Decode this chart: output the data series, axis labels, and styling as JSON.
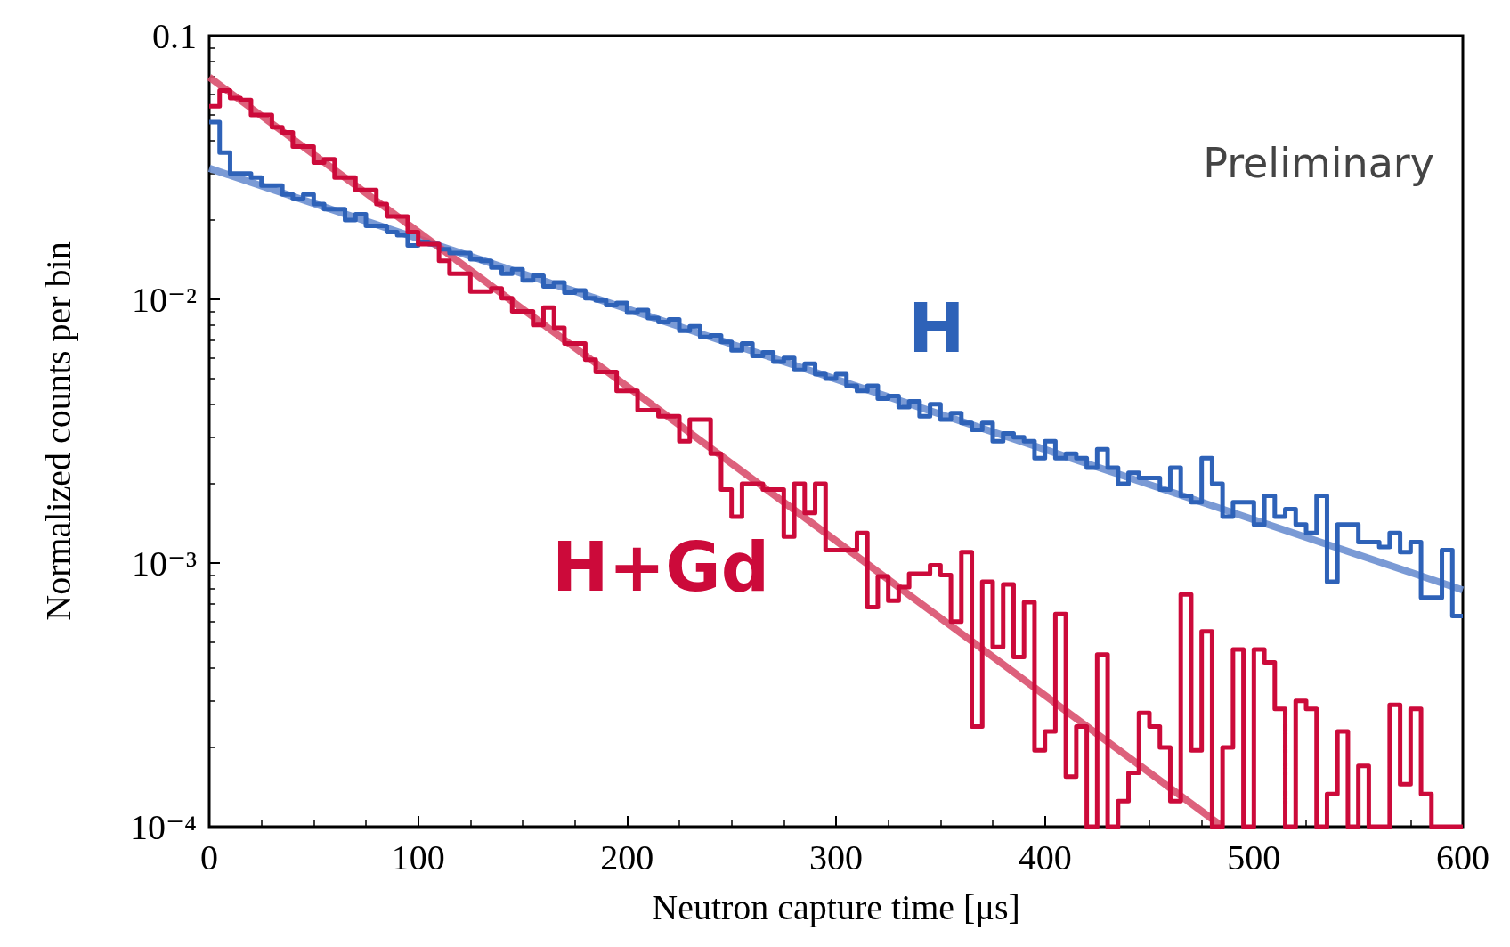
{
  "chart_data": {
    "type": "histogram",
    "xlabel": "Neutron capture time [μs]",
    "ylabel": "Normalized counts per bin",
    "log": "y",
    "xlim": [
      0,
      600
    ],
    "xticks": [
      0,
      100,
      200,
      300,
      400,
      500,
      600
    ],
    "ylim": [
      0.0001,
      0.1
    ],
    "yticks": [
      {
        "value": 0.1,
        "label": "0.1"
      },
      {
        "value": 0.01,
        "label": "10⁻²"
      },
      {
        "value": 0.001,
        "label": "10⁻³"
      },
      {
        "value": 0.0001,
        "label": "10⁻⁴"
      }
    ],
    "grid": false,
    "bins": [
      0,
      5,
      10,
      15,
      20,
      25,
      30,
      35,
      40,
      45,
      50,
      55,
      60,
      65,
      70,
      75,
      80,
      85,
      90,
      95,
      100,
      105,
      110,
      115,
      120,
      125,
      130,
      135,
      140,
      145,
      150,
      155,
      160,
      165,
      170,
      175,
      180,
      185,
      190,
      195,
      200,
      205,
      210,
      215,
      220,
      225,
      230,
      235,
      240,
      245,
      250,
      255,
      260,
      265,
      270,
      275,
      280,
      285,
      290,
      295,
      300,
      305,
      310,
      315,
      320,
      325,
      330,
      335,
      340,
      345,
      350,
      355,
      360,
      365,
      370,
      375,
      380,
      385,
      390,
      395,
      400,
      405,
      410,
      415,
      420,
      425,
      430,
      435,
      440,
      445,
      450,
      455,
      460,
      465,
      470,
      475,
      480,
      485,
      490,
      495,
      500,
      505,
      510,
      515,
      520,
      525,
      530,
      535,
      540,
      545,
      550,
      555,
      560,
      565,
      570,
      575,
      580,
      585,
      590,
      595,
      600
    ],
    "series": [
      {
        "type": "line",
        "color": "#6b8fd0",
        "x": [
          0,
          600
        ],
        "values": [
          0.0314,
          0.00079
        ]
      },
      {
        "type": "line",
        "color": "#d9506e",
        "x": [
          0,
          485
        ],
        "values": [
          0.0696,
          0.0001
        ]
      },
      {
        "type": "histogram",
        "color": "#2e62b8",
        "values": [
          0.047,
          0.036,
          0.03,
          0.03,
          0.029,
          0.027,
          0.027,
          0.025,
          0.024,
          0.025,
          0.023,
          0.022,
          0.022,
          0.02,
          0.021,
          0.019,
          0.019,
          0.018,
          0.0175,
          0.016,
          0.0165,
          0.0162,
          0.0155,
          0.015,
          0.015,
          0.0142,
          0.014,
          0.0132,
          0.0125,
          0.013,
          0.0118,
          0.0123,
          0.0112,
          0.0116,
          0.0106,
          0.0108,
          0.0101,
          0.0099,
          0.0095,
          0.0097,
          0.0089,
          0.0091,
          0.0085,
          0.0082,
          0.0084,
          0.0076,
          0.0079,
          0.0072,
          0.0073,
          0.0069,
          0.0064,
          0.0068,
          0.0061,
          0.0063,
          0.0058,
          0.006,
          0.0054,
          0.0057,
          0.0052,
          0.005,
          0.0052,
          0.0047,
          0.0045,
          0.0047,
          0.0042,
          0.0043,
          0.0039,
          0.0041,
          0.0036,
          0.004,
          0.0035,
          0.0037,
          0.0034,
          0.0032,
          0.0034,
          0.0029,
          0.0031,
          0.003,
          0.0029,
          0.0025,
          0.0029,
          0.0025,
          0.0026,
          0.0025,
          0.0023,
          0.0027,
          0.0023,
          0.002,
          0.0022,
          0.0021,
          0.0021,
          0.0019,
          0.0023,
          0.0018,
          0.0017,
          0.0025,
          0.002,
          0.0015,
          0.0017,
          0.0017,
          0.0014,
          0.0018,
          0.0015,
          0.0016,
          0.0014,
          0.0013,
          0.0018,
          0.00085,
          0.0014,
          0.0014,
          0.0012,
          0.0012,
          0.00115,
          0.0013,
          0.0011,
          0.0012,
          0.00074,
          0.00074,
          0.00112,
          0.00063
        ]
      },
      {
        "type": "histogram",
        "color": "#cc0a3a",
        "values": [
          0.054,
          0.062,
          0.058,
          0.057,
          0.05,
          0.05,
          0.045,
          0.043,
          0.038,
          0.038,
          0.033,
          0.034,
          0.029,
          0.029,
          0.026,
          0.026,
          0.023,
          0.0206,
          0.0206,
          0.018,
          0.0162,
          0.0162,
          0.014,
          0.0125,
          0.0125,
          0.0107,
          0.0107,
          0.011,
          0.0101,
          0.009,
          0.009,
          0.008,
          0.0093,
          0.0078,
          0.0068,
          0.0068,
          0.0059,
          0.0053,
          0.0053,
          0.0045,
          0.0045,
          0.0038,
          0.0038,
          0.0036,
          0.0036,
          0.0029,
          0.0035,
          0.0035,
          0.0026,
          0.0019,
          0.0015,
          0.002,
          0.002,
          0.0019,
          0.0019,
          0.00126,
          0.002,
          0.00155,
          0.002,
          0.00112,
          0.00112,
          0.00112,
          0.0013,
          0.00068,
          0.00089,
          0.00072,
          0.00081,
          0.00091,
          0.00091,
          0.00098,
          0.0009,
          0.0006,
          0.0011,
          0.00024,
          0.00085,
          0.00048,
          0.00083,
          0.00044,
          0.00071,
          0.000195,
          0.00023,
          0.00064,
          0.000155,
          0.00024,
          null,
          0.00045,
          null,
          0.000125,
          0.00016,
          0.00027,
          0.00024,
          0.0002,
          0.000125,
          0.00076,
          0.000195,
          0.00055,
          null,
          0.0002,
          0.00047,
          null,
          0.00047,
          0.00042,
          0.00028,
          null,
          0.0003,
          0.00028,
          null,
          0.000133,
          0.00023,
          null,
          0.00017,
          null,
          null,
          0.00029,
          0.000145,
          0.00028,
          0.000133,
          null,
          null,
          null
        ]
      }
    ],
    "annotations": [
      "H",
      "H+Gd",
      "Preliminary"
    ]
  }
}
